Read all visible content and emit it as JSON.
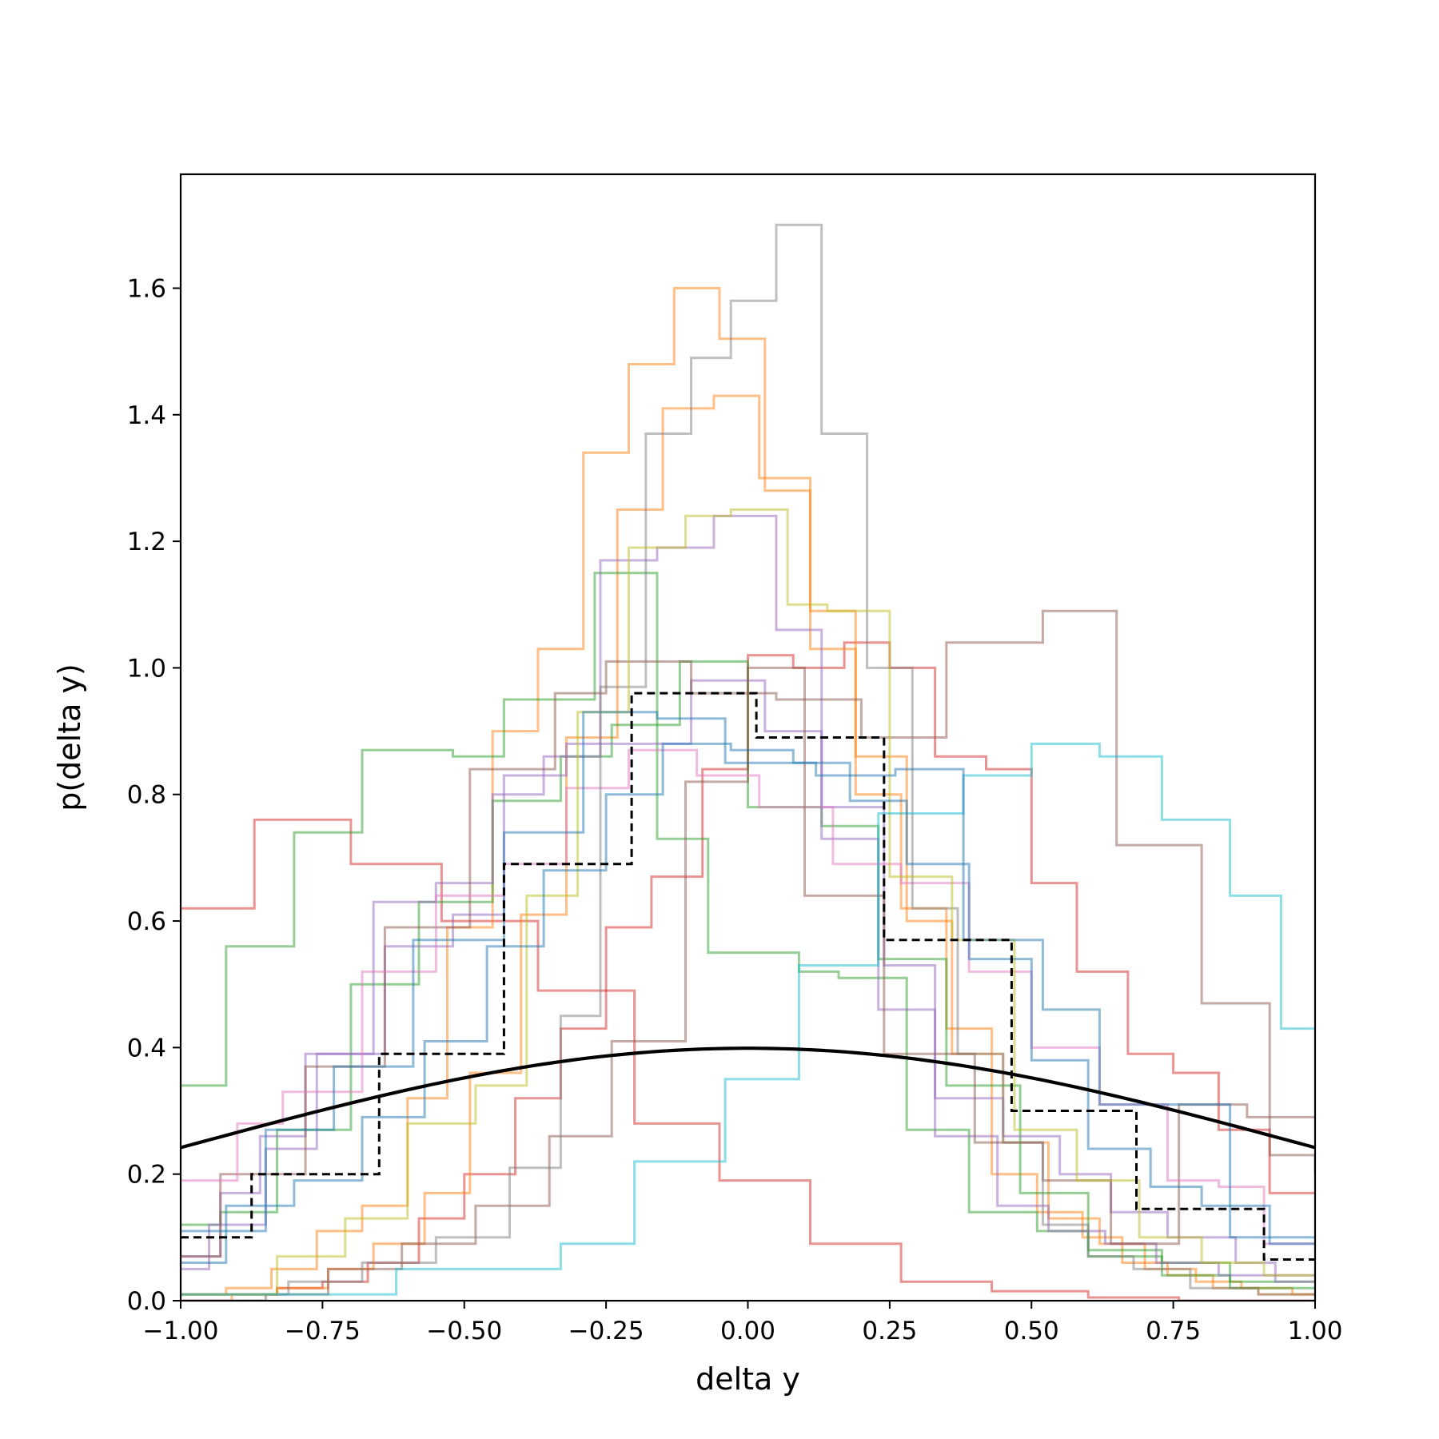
{
  "chart_data": {
    "type": "histogram-step",
    "title": "",
    "xlabel": "delta y",
    "ylabel": "p(delta y)",
    "xlim": [
      -1.0,
      1.0
    ],
    "ylim": [
      0.0,
      1.78
    ],
    "x_ticks": [
      -1.0,
      -0.75,
      -0.5,
      -0.25,
      0.0,
      0.25,
      0.5,
      0.75,
      1.0
    ],
    "x_tick_labels": [
      "−1.00",
      "−0.75",
      "−0.50",
      "−0.25",
      "0.00",
      "0.25",
      "0.50",
      "0.75",
      "1.00"
    ],
    "y_ticks": [
      0.0,
      0.2,
      0.4,
      0.6,
      0.8,
      1.0,
      1.2,
      1.4,
      1.6
    ],
    "y_tick_labels": [
      "0.0",
      "0.2",
      "0.4",
      "0.6",
      "0.8",
      "1.0",
      "1.2",
      "1.4",
      "1.6"
    ],
    "grid": false,
    "reference_gaussian": {
      "mean": 0.0,
      "std": 1.0,
      "peak": 0.399,
      "color": "#000000"
    },
    "aggregate_histogram": {
      "edges": [
        -1.0,
        -0.875,
        -0.65,
        -0.43,
        -0.205,
        0.015,
        0.24,
        0.465,
        0.685,
        0.91,
        1.0
      ],
      "values": [
        0.1,
        0.2,
        0.39,
        0.69,
        0.96,
        0.89,
        0.57,
        0.3,
        0.145,
        0.065
      ],
      "color": "#000000",
      "style": "dashed"
    },
    "series": [
      {
        "color": "#d62728",
        "edges": [
          -1.0,
          -0.87,
          -0.7,
          -0.54,
          -0.37,
          -0.2,
          -0.05,
          0.11,
          0.27,
          0.43,
          0.6,
          0.76,
          0.92,
          1.0
        ],
        "values": [
          0.62,
          0.76,
          0.69,
          0.6,
          0.49,
          0.28,
          0.19,
          0.09,
          0.03,
          0.015,
          0.005,
          0.0,
          0.0
        ]
      },
      {
        "color": "#d62728",
        "edges": [
          -1.0,
          -0.92,
          -0.83,
          -0.75,
          -0.67,
          -0.58,
          -0.5,
          -0.41,
          -0.33,
          -0.25,
          -0.17,
          -0.08,
          0.0,
          0.08,
          0.17,
          0.25,
          0.33,
          0.42,
          0.5,
          0.58,
          0.67,
          0.75,
          0.83,
          0.92,
          1.0
        ],
        "values": [
          0.01,
          0.01,
          0.02,
          0.03,
          0.06,
          0.13,
          0.2,
          0.32,
          0.43,
          0.59,
          0.67,
          0.84,
          1.02,
          1.0,
          1.04,
          1.0,
          0.86,
          0.84,
          0.66,
          0.52,
          0.39,
          0.36,
          0.27,
          0.17
        ]
      },
      {
        "color": "#ff7f0e",
        "edges": [
          -1.0,
          -0.92,
          -0.84,
          -0.76,
          -0.68,
          -0.6,
          -0.53,
          -0.45,
          -0.37,
          -0.29,
          -0.21,
          -0.13,
          -0.05,
          0.03,
          0.11,
          0.19,
          0.27,
          0.35,
          0.43,
          0.51,
          0.59,
          0.66,
          0.74,
          0.82,
          0.9,
          1.0
        ],
        "values": [
          0.01,
          0.02,
          0.05,
          0.11,
          0.15,
          0.32,
          0.59,
          0.9,
          1.03,
          1.34,
          1.48,
          1.6,
          1.52,
          1.28,
          1.09,
          0.8,
          0.62,
          0.43,
          0.2,
          0.14,
          0.1,
          0.06,
          0.04,
          0.02,
          0.01
        ]
      },
      {
        "color": "#ff7f0e",
        "edges": [
          -1.0,
          -0.91,
          -0.83,
          -0.74,
          -0.66,
          -0.57,
          -0.49,
          -0.4,
          -0.32,
          -0.23,
          -0.15,
          -0.06,
          0.02,
          0.11,
          0.19,
          0.28,
          0.36,
          0.45,
          0.53,
          0.62,
          0.7,
          0.79,
          0.87,
          0.96,
          1.0
        ],
        "values": [
          0.0,
          0.01,
          0.02,
          0.05,
          0.09,
          0.17,
          0.36,
          0.61,
          0.89,
          1.25,
          1.41,
          1.43,
          1.3,
          1.03,
          0.86,
          0.6,
          0.39,
          0.25,
          0.13,
          0.09,
          0.05,
          0.03,
          0.02,
          0.01
        ]
      },
      {
        "color": "#2ca02c",
        "edges": [
          -1.0,
          -0.92,
          -0.8,
          -0.68,
          -0.52,
          -0.43,
          -0.27,
          -0.16,
          -0.07,
          0.09,
          0.16,
          0.28,
          0.39,
          0.51,
          0.6,
          0.73,
          0.85,
          1.0
        ],
        "values": [
          0.34,
          0.56,
          0.74,
          0.87,
          0.86,
          0.95,
          1.15,
          0.73,
          0.55,
          0.52,
          0.51,
          0.27,
          0.14,
          0.11,
          0.07,
          0.04,
          0.02
        ]
      },
      {
        "color": "#2ca02c",
        "edges": [
          -1.0,
          -0.93,
          -0.83,
          -0.7,
          -0.58,
          -0.45,
          -0.33,
          -0.24,
          -0.12,
          0.0,
          0.13,
          0.23,
          0.35,
          0.48,
          0.6,
          0.73,
          0.85,
          1.0
        ],
        "values": [
          0.12,
          0.14,
          0.27,
          0.5,
          0.63,
          0.79,
          0.86,
          0.91,
          1.01,
          0.78,
          0.75,
          0.54,
          0.34,
          0.17,
          0.08,
          0.06,
          0.03
        ]
      },
      {
        "color": "#9467bd",
        "edges": [
          -1.0,
          -0.95,
          -0.85,
          -0.76,
          -0.66,
          -0.55,
          -0.45,
          -0.36,
          -0.26,
          -0.16,
          -0.06,
          0.05,
          0.13,
          0.23,
          0.33,
          0.44,
          0.53,
          0.63,
          0.72,
          0.83,
          0.93,
          1.0
        ],
        "values": [
          0.05,
          0.12,
          0.24,
          0.39,
          0.63,
          0.66,
          0.8,
          0.86,
          1.17,
          1.19,
          1.24,
          1.06,
          0.73,
          0.46,
          0.26,
          0.15,
          0.11,
          0.09,
          0.06,
          0.04,
          0.03
        ]
      },
      {
        "color": "#9467bd",
        "edges": [
          -1.0,
          -0.93,
          -0.86,
          -0.78,
          -0.64,
          -0.52,
          -0.43,
          -0.32,
          -0.2,
          -0.1,
          0.03,
          0.13,
          0.24,
          0.33,
          0.45,
          0.55,
          0.64,
          0.74,
          0.86,
          0.93,
          1.0
        ],
        "values": [
          0.07,
          0.17,
          0.26,
          0.39,
          0.56,
          0.61,
          0.83,
          0.88,
          0.88,
          0.98,
          0.9,
          0.78,
          0.53,
          0.32,
          0.26,
          0.2,
          0.14,
          0.1,
          0.06,
          0.04
        ]
      },
      {
        "color": "#8c564b",
        "edges": [
          -1.0,
          -0.93,
          -0.78,
          -0.64,
          -0.49,
          -0.34,
          -0.25,
          -0.1,
          0.05,
          0.2,
          0.35,
          0.52,
          0.65,
          0.8,
          0.92,
          1.0
        ],
        "values": [
          0.07,
          0.2,
          0.37,
          0.59,
          0.84,
          0.96,
          1.01,
          0.96,
          0.95,
          0.89,
          1.04,
          1.09,
          0.72,
          0.47,
          0.23,
          0.2
        ]
      },
      {
        "color": "#8c564b",
        "edges": [
          -1.0,
          -0.85,
          -0.74,
          -0.61,
          -0.48,
          -0.35,
          -0.24,
          -0.11,
          0.0,
          0.1,
          0.24,
          0.4,
          0.52,
          0.64,
          0.76,
          0.88,
          1.0
        ],
        "values": [
          0.0,
          0.01,
          0.05,
          0.09,
          0.15,
          0.26,
          0.41,
          0.82,
          1.0,
          0.64,
          0.39,
          0.25,
          0.19,
          0.09,
          0.31,
          0.29
        ]
      },
      {
        "color": "#e377c2",
        "edges": [
          -1.0,
          -0.9,
          -0.82,
          -0.68,
          -0.55,
          -0.43,
          -0.32,
          -0.21,
          -0.09,
          0.02,
          0.15,
          0.27,
          0.39,
          0.5,
          0.62,
          0.74,
          0.83,
          0.91,
          1.0
        ],
        "values": [
          0.19,
          0.28,
          0.33,
          0.52,
          0.64,
          0.69,
          0.81,
          0.87,
          0.83,
          0.78,
          0.69,
          0.66,
          0.52,
          0.4,
          0.31,
          0.19,
          0.18,
          0.09
        ]
      },
      {
        "color": "#7f7f7f",
        "edges": [
          -1.0,
          -0.81,
          -0.68,
          -0.55,
          -0.42,
          -0.33,
          -0.26,
          -0.18,
          -0.1,
          -0.03,
          0.05,
          0.13,
          0.21,
          0.29,
          0.37,
          0.45,
          0.52,
          0.6,
          0.68,
          0.78,
          0.9,
          1.0
        ],
        "values": [
          0.01,
          0.03,
          0.06,
          0.1,
          0.21,
          0.45,
          0.97,
          1.37,
          1.49,
          1.58,
          1.7,
          1.37,
          1.0,
          0.62,
          0.39,
          0.25,
          0.12,
          0.07,
          0.05,
          0.02,
          0.01
        ]
      },
      {
        "color": "#bcbd22",
        "edges": [
          -1.0,
          -0.83,
          -0.71,
          -0.6,
          -0.48,
          -0.39,
          -0.3,
          -0.21,
          -0.11,
          -0.03,
          0.07,
          0.14,
          0.25,
          0.36,
          0.47,
          0.58,
          0.69,
          0.8,
          0.91,
          1.0
        ],
        "values": [
          0.01,
          0.07,
          0.13,
          0.28,
          0.34,
          0.64,
          0.93,
          1.19,
          1.24,
          1.25,
          1.1,
          1.09,
          0.67,
          0.57,
          0.27,
          0.19,
          0.1,
          0.06,
          0.04
        ]
      },
      {
        "color": "#17becf",
        "edges": [
          -1.0,
          -0.85,
          -0.62,
          -0.33,
          -0.2,
          -0.04,
          0.09,
          0.23,
          0.38,
          0.5,
          0.62,
          0.73,
          0.85,
          0.94,
          1.0
        ],
        "values": [
          0.01,
          0.01,
          0.05,
          0.09,
          0.22,
          0.35,
          0.53,
          0.77,
          0.83,
          0.88,
          0.86,
          0.76,
          0.64,
          0.43
        ]
      },
      {
        "color": "#1f77b4",
        "edges": [
          -1.0,
          -0.85,
          -0.73,
          -0.59,
          -0.43,
          -0.29,
          -0.16,
          -0.04,
          0.12,
          0.26,
          0.38,
          0.52,
          0.62,
          0.73,
          0.85,
          1.0
        ],
        "values": [
          0.11,
          0.27,
          0.37,
          0.57,
          0.74,
          0.93,
          0.92,
          0.85,
          0.83,
          0.84,
          0.57,
          0.46,
          0.31,
          0.31,
          0.1
        ]
      },
      {
        "color": "#1f77b4",
        "edges": [
          -1.0,
          -0.92,
          -0.8,
          -0.68,
          -0.57,
          -0.46,
          -0.36,
          -0.25,
          -0.15,
          -0.03,
          0.08,
          0.18,
          0.28,
          0.39,
          0.5,
          0.6,
          0.71,
          0.8,
          0.92,
          1.0
        ],
        "values": [
          0.06,
          0.15,
          0.19,
          0.29,
          0.41,
          0.56,
          0.68,
          0.8,
          0.88,
          0.87,
          0.85,
          0.79,
          0.69,
          0.54,
          0.38,
          0.24,
          0.18,
          0.15,
          0.09
        ]
      }
    ]
  }
}
